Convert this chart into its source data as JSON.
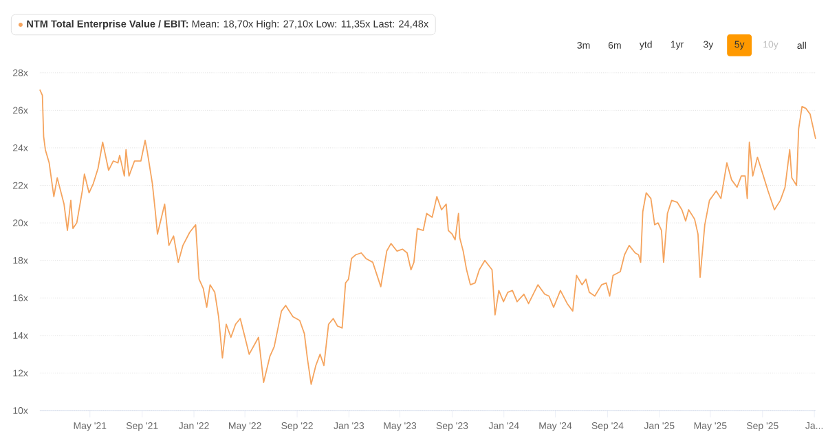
{
  "chart_data": {
    "type": "line",
    "title": "**NTM Total Enterprise Value / EBIT:** Mean: 18,70x High: 27,10x Low: 11,35x Last: 24,48x",
    "annotations": [
      "3m",
      "6m",
      "ytd",
      "1yr",
      "3y",
      "5y",
      "10y",
      "all"
    ],
    "x": [
      "2021-01-03",
      "2021-01-09",
      "2021-01-12",
      "2021-01-16",
      "2021-01-25",
      "2021-02-05",
      "2021-02-13",
      "2021-03-01",
      "2021-03-09",
      "2021-03-17",
      "2021-03-22",
      "2021-03-31",
      "2021-04-13",
      "2021-04-18",
      "2021-04-29",
      "2021-05-09",
      "2021-05-20",
      "2021-05-31",
      "2021-06-14",
      "2021-06-25",
      "2021-07-06",
      "2021-07-10",
      "2021-07-21",
      "2021-07-25",
      "2021-08-01",
      "2021-08-14",
      "2021-08-29",
      "2021-09-08",
      "2021-09-13",
      "2021-09-25",
      "2021-10-02",
      "2021-10-07",
      "2021-10-24",
      "2021-11-03",
      "2021-11-14",
      "2021-11-25",
      "2021-12-06",
      "2021-12-22",
      "2022-01-05",
      "2022-01-13",
      "2022-01-23",
      "2022-01-31",
      "2022-02-08",
      "2022-02-19",
      "2022-02-28",
      "2022-03-09",
      "2022-03-18",
      "2022-03-29",
      "2022-04-09",
      "2022-04-20",
      "2022-04-30",
      "2022-05-11",
      "2022-06-02",
      "2022-06-14",
      "2022-06-29",
      "2022-07-09",
      "2022-07-26",
      "2022-08-05",
      "2022-08-22",
      "2022-09-07",
      "2022-09-18",
      "2022-09-25",
      "2022-10-04",
      "2022-10-15",
      "2022-10-25",
      "2022-11-03",
      "2022-11-14",
      "2022-11-25",
      "2022-12-05",
      "2022-12-16",
      "2022-12-24",
      "2022-12-31",
      "2023-01-07",
      "2023-01-17",
      "2023-01-30",
      "2023-02-10",
      "2023-02-26",
      "2023-03-17",
      "2023-03-31",
      "2023-04-10",
      "2023-04-24",
      "2023-05-07",
      "2023-05-18",
      "2023-05-27",
      "2023-06-03",
      "2023-06-11",
      "2023-06-25",
      "2023-07-03",
      "2023-07-16",
      "2023-07-27",
      "2023-08-07",
      "2023-08-18",
      "2023-08-23",
      "2023-09-01",
      "2023-09-08",
      "2023-09-16",
      "2023-09-19",
      "2023-09-27",
      "2023-10-05",
      "2023-10-14",
      "2023-10-25",
      "2023-11-04",
      "2023-11-17",
      "2023-12-04",
      "2023-12-11",
      "2023-12-20",
      "2023-12-31",
      "2024-01-10",
      "2024-01-21",
      "2024-02-01",
      "2024-02-17",
      "2024-02-28",
      "2024-03-10",
      "2024-03-21",
      "2024-04-06",
      "2024-04-16",
      "2024-04-27",
      "2024-05-13",
      "2024-05-29",
      "2024-06-11",
      "2024-06-20",
      "2024-07-03",
      "2024-07-12",
      "2024-07-20",
      "2024-08-02",
      "2024-08-18",
      "2024-08-29",
      "2024-09-06",
      "2024-09-14",
      "2024-10-01",
      "2024-10-11",
      "2024-10-22",
      "2024-11-05",
      "2024-11-13",
      "2024-11-18",
      "2024-11-23",
      "2024-12-01",
      "2024-12-12",
      "2024-12-21",
      "2024-12-29",
      "2025-01-06",
      "2025-01-11",
      "2025-01-20",
      "2025-01-30",
      "2025-02-12",
      "2025-02-23",
      "2025-03-04",
      "2025-03-11",
      "2025-03-25",
      "2025-04-02",
      "2025-04-07",
      "2025-04-18",
      "2025-04-29",
      "2025-05-15",
      "2025-05-26",
      "2025-06-09",
      "2025-06-20",
      "2025-07-03",
      "2025-07-13",
      "2025-07-22",
      "2025-07-27",
      "2025-08-01",
      "2025-08-09",
      "2025-08-20",
      "2025-09-03",
      "2025-09-14",
      "2025-09-29",
      "2025-10-13",
      "2025-10-24",
      "2025-11-04",
      "2025-11-09",
      "2025-11-20",
      "2025-11-25",
      "2025-12-03",
      "2025-12-12",
      "2025-12-22",
      "2025-12-29",
      "2026-01-04"
    ],
    "series": [
      {
        "color": "#f5a45e",
        "values": [
          27.1,
          26.8,
          24.6,
          23.9,
          23.2,
          21.4,
          22.4,
          21.0,
          19.6,
          21.2,
          19.7,
          20.0,
          21.7,
          22.6,
          21.6,
          22.1,
          22.9,
          24.3,
          22.8,
          23.3,
          23.2,
          23.6,
          22.5,
          23.9,
          22.5,
          23.3,
          23.3,
          24.4,
          23.8,
          22.1,
          20.6,
          19.4,
          21.0,
          18.8,
          19.3,
          17.9,
          18.8,
          19.5,
          19.9,
          17.0,
          16.5,
          15.5,
          16.7,
          16.3,
          15.0,
          12.8,
          14.6,
          13.9,
          14.6,
          14.9,
          14.0,
          13.0,
          13.9,
          11.5,
          12.9,
          13.4,
          15.3,
          15.6,
          15.0,
          14.8,
          14.1,
          12.8,
          11.4,
          12.4,
          13.0,
          12.4,
          14.6,
          14.9,
          14.5,
          14.4,
          16.8,
          17.0,
          18.1,
          18.3,
          18.4,
          18.1,
          17.9,
          16.6,
          18.5,
          18.9,
          18.5,
          18.6,
          18.4,
          17.5,
          17.9,
          19.7,
          19.6,
          20.5,
          20.3,
          21.4,
          20.7,
          21.0,
          19.6,
          19.4,
          19.1,
          20.5,
          19.2,
          18.5,
          17.5,
          16.7,
          16.8,
          17.5,
          18.0,
          17.5,
          15.1,
          16.4,
          15.8,
          16.3,
          16.4,
          15.8,
          16.2,
          15.7,
          16.2,
          16.7,
          16.2,
          16.1,
          15.5,
          16.4,
          15.7,
          15.3,
          17.2,
          16.7,
          17.0,
          16.3,
          16.1,
          16.7,
          16.8,
          16.1,
          17.2,
          17.4,
          18.3,
          18.8,
          18.4,
          18.3,
          17.9,
          20.6,
          21.6,
          21.3,
          19.9,
          20.0,
          19.6,
          17.9,
          20.5,
          21.2,
          21.1,
          20.7,
          20.1,
          20.7,
          20.2,
          19.4,
          17.1,
          19.9,
          21.2,
          21.7,
          21.3,
          23.2,
          22.3,
          21.9,
          22.5,
          22.5,
          21.3,
          24.3,
          22.5,
          23.5,
          22.5,
          21.7,
          20.7,
          21.2,
          21.9,
          23.9,
          22.4,
          22.0,
          25.0,
          26.2,
          26.1,
          25.8,
          25.1,
          24.48
        ]
      }
    ],
    "xlim": [
      "2021-01-03",
      "2026-01-04"
    ],
    "xticks": [
      {
        "value": "2021-05-01",
        "label": "May '21"
      },
      {
        "value": "2021-09-01",
        "label": "Sep '21"
      },
      {
        "value": "2022-01-01",
        "label": "Jan '22"
      },
      {
        "value": "2022-05-01",
        "label": "May '22"
      },
      {
        "value": "2022-09-01",
        "label": "Sep '22"
      },
      {
        "value": "2023-01-01",
        "label": "Jan '23"
      },
      {
        "value": "2023-05-01",
        "label": "May '23"
      },
      {
        "value": "2023-09-01",
        "label": "Sep '23"
      },
      {
        "value": "2024-01-01",
        "label": "Jan '24"
      },
      {
        "value": "2024-05-01",
        "label": "May '24"
      },
      {
        "value": "2024-09-01",
        "label": "Sep '24"
      },
      {
        "value": "2025-01-01",
        "label": "Jan '25"
      },
      {
        "value": "2025-05-01",
        "label": "May '25"
      },
      {
        "value": "2025-09-01",
        "label": "Sep '25"
      },
      {
        "value": "2026-01-01",
        "label": "Ja..."
      }
    ],
    "ylim": [
      10,
      28
    ],
    "yticks": [
      {
        "value": 10,
        "label": "10x"
      },
      {
        "value": 12,
        "label": "12x"
      },
      {
        "value": 14,
        "label": "14x"
      },
      {
        "value": 16,
        "label": "16x"
      },
      {
        "value": 18,
        "label": "18x"
      },
      {
        "value": 20,
        "label": "20x"
      },
      {
        "value": 22,
        "label": "22x"
      },
      {
        "value": 24,
        "label": "24x"
      },
      {
        "value": 26,
        "label": "26x"
      },
      {
        "value": 28,
        "label": "28x"
      }
    ],
    "grid": "y",
    "marker": "none"
  }
}
